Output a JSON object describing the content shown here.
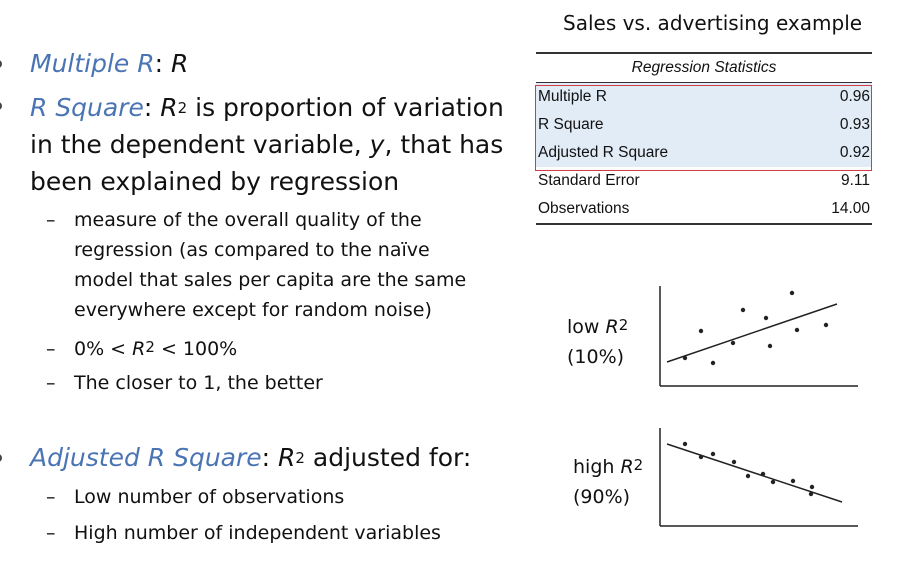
{
  "left": {
    "multiple_r": {
      "term": "Multiple R",
      "sep": ": ",
      "value": "R"
    },
    "r_square": {
      "term": "R Square",
      "sep": ": ",
      "r": "R",
      "sup": "2",
      "line1_rest": " is proportion of variation",
      "line2_a": "in the dependent variable, ",
      "line2_y": "y",
      "line2_b": ", that has",
      "line3": "been explained by regression",
      "sub_lines": [
        "measure of the overall quality of the",
        "regression (as compared to the naïve",
        "model that sales per capita are the same",
        "everywhere except for random noise)"
      ],
      "range": {
        "left": "0%  <  ",
        "r": "R",
        "sup": "2",
        "right": "  <  100%"
      },
      "closer": "The closer to 1, the better"
    },
    "adjusted": {
      "term": "Adjusted R Square",
      "sep": ": ",
      "r": "R",
      "sup": "2",
      "rest": " adjusted for:",
      "sub_items": [
        "Low number of observations",
        "High number of independent variables"
      ]
    },
    "dash": "–"
  },
  "right": {
    "title": "Sales vs. advertising example",
    "table": {
      "header": "Regression Statistics",
      "rows": [
        {
          "label": "Multiple R",
          "value": "0.96"
        },
        {
          "label": "R Square",
          "value": "0.93"
        },
        {
          "label": "Adjusted R Square",
          "value": "0.92"
        },
        {
          "label": "Standard Error",
          "value": "9.11"
        },
        {
          "label": "Observations",
          "value": "14.00"
        }
      ]
    },
    "low": {
      "label": "low ",
      "r": "R",
      "sup": "2",
      "pct": "(10%)"
    },
    "high": {
      "label": "high ",
      "r": "R",
      "sup": "2",
      "pct": "(90%)"
    }
  },
  "colors": {
    "term": "#4a74b4",
    "highlight_fill": "#e2ecf7",
    "highlight_border": "#d33a4a"
  }
}
